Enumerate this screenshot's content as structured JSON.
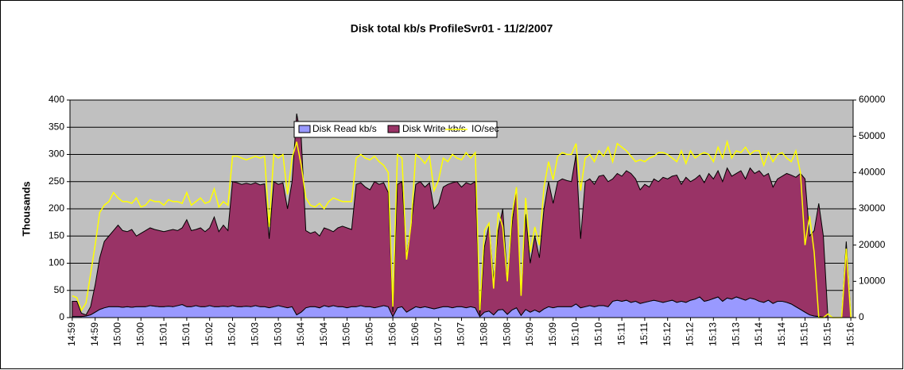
{
  "chart_data": {
    "type": "stacked_area_line",
    "title": "Disk total kb/s ProfileSvr01 - 11/2/2007",
    "y_label": "Thousands",
    "legend": "top",
    "grid": true,
    "background": "#c0c0c0",
    "categories": [
      "14:59",
      null,
      null,
      null,
      null,
      "14:59",
      null,
      null,
      null,
      null,
      "15:00",
      null,
      null,
      null,
      null,
      "15:00",
      null,
      null,
      null,
      null,
      "15:01",
      null,
      null,
      null,
      null,
      "15:01",
      null,
      null,
      null,
      null,
      "15:02",
      null,
      null,
      null,
      null,
      "15:02",
      null,
      null,
      null,
      null,
      "15:03",
      null,
      null,
      null,
      null,
      "15:03",
      null,
      null,
      null,
      null,
      "15:04",
      null,
      null,
      null,
      null,
      "15:04",
      null,
      null,
      null,
      null,
      "15:05",
      null,
      null,
      null,
      null,
      "15:05",
      null,
      null,
      null,
      null,
      "15:06",
      null,
      null,
      null,
      null,
      "15:06",
      null,
      null,
      null,
      null,
      "15:07",
      null,
      null,
      null,
      null,
      "15:07",
      null,
      null,
      null,
      null,
      "15:08",
      null,
      null,
      null,
      null,
      "15:08",
      null,
      null,
      null,
      null,
      "15:09",
      null,
      null,
      null,
      null,
      "15:09",
      null,
      null,
      null,
      null,
      "15:10",
      null,
      null,
      null,
      null,
      "15:10",
      null,
      null,
      null,
      null,
      "15:11",
      null,
      null,
      null,
      null,
      "15:11",
      null,
      null,
      null,
      null,
      "15:12",
      null,
      null,
      null,
      null,
      "15:12",
      null,
      null,
      null,
      null,
      "15:13",
      null,
      null,
      null,
      null,
      "15:13",
      null,
      null,
      null,
      null,
      "15:14",
      null,
      null,
      null,
      null,
      "15:14",
      null,
      null,
      null,
      null,
      "15:15",
      null,
      null,
      null,
      null,
      "15:15",
      null,
      null,
      null,
      null,
      "15:16"
    ],
    "ylim": [
      0,
      400
    ],
    "yticks": [
      0,
      50,
      100,
      150,
      200,
      250,
      300,
      350,
      400
    ],
    "y2lim": [
      0,
      60000
    ],
    "y2ticks": [
      0,
      10000,
      20000,
      30000,
      40000,
      50000,
      60000
    ],
    "series": [
      {
        "name": "Disk Read kb/s",
        "color": "#9999ff",
        "kind": "area",
        "values": [
          2,
          2,
          2,
          3,
          5,
          10,
          15,
          18,
          20,
          20,
          20,
          19,
          20,
          19,
          20,
          20,
          20,
          22,
          21,
          20,
          20,
          21,
          20,
          22,
          24,
          20,
          20,
          22,
          20,
          20,
          22,
          20,
          20,
          21,
          20,
          22,
          20,
          20,
          21,
          20,
          22,
          20,
          20,
          18,
          20,
          22,
          20,
          18,
          20,
          5,
          10,
          18,
          20,
          20,
          18,
          22,
          20,
          22,
          20,
          20,
          18,
          20,
          20,
          22,
          20,
          20,
          18,
          20,
          22,
          20,
          2,
          18,
          20,
          10,
          15,
          20,
          18,
          20,
          18,
          16,
          18,
          20,
          20,
          18,
          20,
          20,
          18,
          20,
          18,
          2,
          10,
          12,
          5,
          14,
          15,
          6,
          14,
          18,
          4,
          15,
          10,
          14,
          10,
          16,
          20,
          18,
          20,
          20,
          20,
          20,
          25,
          18,
          20,
          22,
          20,
          22,
          22,
          20,
          30,
          32,
          30,
          32,
          28,
          30,
          26,
          28,
          30,
          32,
          30,
          28,
          30,
          32,
          28,
          30,
          28,
          32,
          34,
          38,
          30,
          32,
          35,
          38,
          30,
          36,
          34,
          38,
          35,
          32,
          36,
          34,
          30,
          28,
          32,
          26,
          30,
          30,
          28,
          25,
          20,
          15,
          10,
          5,
          3,
          2,
          1,
          0,
          0,
          0,
          0,
          0,
          0
        ]
      },
      {
        "name": "Disk Write kb/s",
        "color": "#993366",
        "kind": "area",
        "values": [
          28,
          28,
          6,
          2,
          15,
          50,
          95,
          122,
          130,
          140,
          150,
          141,
          138,
          143,
          130,
          135,
          140,
          143,
          141,
          140,
          138,
          139,
          142,
          138,
          141,
          160,
          140,
          140,
          145,
          138,
          143,
          165,
          138,
          149,
          140,
          228,
          228,
          225,
          226,
          225,
          226,
          224,
          226,
          127,
          230,
          223,
          228,
          182,
          230,
          370,
          320,
          142,
          135,
          138,
          132,
          143,
          142,
          136,
          145,
          148,
          147,
          142,
          225,
          226,
          220,
          215,
          232,
          225,
          226,
          210,
          8,
          227,
          230,
          105,
          155,
          225,
          232,
          220,
          230,
          184,
          192,
          220,
          225,
          230,
          230,
          220,
          230,
          225,
          232,
          3,
          120,
          158,
          65,
          146,
          185,
          64,
          156,
          222,
          36,
          175,
          90,
          136,
          100,
          184,
          230,
          192,
          230,
          235,
          232,
          230,
          275,
          127,
          230,
          233,
          225,
          238,
          240,
          230,
          225,
          233,
          230,
          238,
          237,
          225,
          209,
          217,
          210,
          223,
          220,
          230,
          225,
          228,
          234,
          215,
          230,
          218,
          221,
          224,
          218,
          233,
          220,
          232,
          220,
          239,
          226,
          227,
          235,
          223,
          239,
          231,
          240,
          232,
          233,
          214,
          225,
          230,
          237,
          237,
          238,
          250,
          245,
          145,
          157,
          208,
          149,
          0,
          0,
          0,
          0,
          140,
          0
        ]
      },
      {
        "name": "IO/sec",
        "color": "#ffff00",
        "kind": "line",
        "axis": "y2",
        "values": [
          6000,
          5500,
          2000,
          4000,
          12000,
          20000,
          29000,
          31000,
          32000,
          34500,
          33000,
          32000,
          32000,
          31500,
          33000,
          30500,
          31000,
          32500,
          32000,
          32000,
          31000,
          32500,
          32000,
          32000,
          31500,
          34500,
          31000,
          32000,
          33000,
          31500,
          32000,
          35500,
          30500,
          32000,
          31000,
          44500,
          44500,
          44000,
          43500,
          44000,
          44500,
          44000,
          44500,
          25000,
          45000,
          44000,
          45000,
          34000,
          44000,
          48500,
          42000,
          33000,
          31000,
          30500,
          31500,
          30000,
          32000,
          33000,
          32500,
          32000,
          32000,
          32000,
          44000,
          45000,
          44000,
          43500,
          44500,
          43000,
          42000,
          40000,
          3000,
          45000,
          44000,
          16000,
          26000,
          45000,
          44000,
          42500,
          44500,
          35000,
          38000,
          44000,
          43000,
          45000,
          44000,
          43500,
          45500,
          44000,
          45500,
          2000,
          24000,
          26000,
          8000,
          29000,
          25000,
          10000,
          28000,
          36000,
          6000,
          33000,
          18000,
          25000,
          20000,
          36000,
          43000,
          38000,
          44500,
          45500,
          45000,
          45000,
          48000,
          35000,
          44000,
          45000,
          43000,
          46000,
          44500,
          47000,
          43000,
          48000,
          47000,
          46000,
          44500,
          43000,
          43500,
          43000,
          44000,
          44500,
          45500,
          45500,
          45000,
          44000,
          43000,
          46000,
          42500,
          46000,
          44000,
          45000,
          45500,
          45000,
          43000,
          47000,
          44000,
          48500,
          44000,
          46000,
          45500,
          47000,
          45000,
          46000,
          46000,
          42000,
          45500,
          43000,
          45000,
          45500,
          44000,
          43000,
          46000,
          40000,
          20000,
          28000,
          18000,
          0,
          0,
          1000,
          0,
          0,
          0,
          19000,
          0
        ]
      }
    ]
  }
}
